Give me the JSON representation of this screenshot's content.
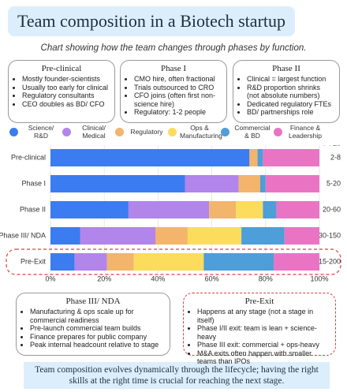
{
  "title": "Team composition in a Biotech startup",
  "subtitle": "Chart showing how the team changes through phases by function.",
  "top_boxes": [
    {
      "title": "Pre-clinical",
      "items": [
        "Mostly founder-scientists",
        "Usually too early for clinical",
        "Regulatory consultants",
        "CEO doubles as BD/ CFO"
      ]
    },
    {
      "title": "Phase I",
      "items": [
        "CMO hire, often fractional",
        "Trials outsourced to CRO",
        "CFO joins (often first non-science hire)",
        "Regulatory: 1-2 people"
      ]
    },
    {
      "title": "Phase II",
      "items": [
        "Clinical = largest function",
        "R&D proportion shrinks (not absolute numbers)",
        "Dedicated regulatory FTEs",
        "BD/ partnerships role"
      ]
    }
  ],
  "bottom_boxes": [
    {
      "title": "Phase III/ NDA",
      "items": [
        "Manufacturing & ops scale up for commercial readiness",
        "Pre-launch commercial team builds",
        "Finance prepares for public company",
        "Peak internal headcount relative to stage"
      ]
    },
    {
      "title": "Pre-Exit",
      "items": [
        "Happens at any stage (not a stage in itself)",
        "Phase I/II exit: team is lean + science-heavy",
        "Phase III exit: commercial + ops-heavy",
        "M&A exits often happen with smaller teams than IPOs"
      ]
    }
  ],
  "footer": "Team composition evolves dynamically through the lifecycle; having the right skills at the right time is crucial for reaching the next stage.",
  "chart_data": {
    "type": "stacked-bar-horizontal",
    "categories": [
      "Pre-clinical",
      "Phase I",
      "Phase II",
      "Phase III/ NDA",
      "Pre-Exit"
    ],
    "series": [
      {
        "name": "Science/ R&D",
        "color": "#3b7cf0",
        "values": [
          74,
          50,
          29,
          11,
          9
        ]
      },
      {
        "name": "Clinical/ Medical",
        "color": "#b185ea",
        "values": [
          0,
          20,
          30,
          28,
          12
        ]
      },
      {
        "name": "Regulatory",
        "color": "#f3b46c",
        "values": [
          3,
          8,
          10,
          12,
          10
        ]
      },
      {
        "name": "Ops & Manufacturing",
        "color": "#fcdc5c",
        "values": [
          0,
          0,
          10,
          20,
          26
        ]
      },
      {
        "name": "Commercial & BD",
        "color": "#4d9ed9",
        "values": [
          2,
          2,
          5,
          16,
          26
        ]
      },
      {
        "name": "Finance & Leadership",
        "color": "#ea74c4",
        "values": [
          21,
          20,
          16,
          13,
          17
        ]
      }
    ],
    "xlim": [
      0,
      100
    ],
    "xticks": [
      {
        "value": 0,
        "label": "0%"
      },
      {
        "value": 20,
        "label": "20%"
      },
      {
        "value": 40,
        "label": "40%"
      },
      {
        "value": 60,
        "label": "60%"
      },
      {
        "value": 80,
        "label": "80%"
      },
      {
        "value": 100,
        "label": "100%"
      }
    ],
    "grid": true,
    "fte_label": "FTEs",
    "fte": [
      "2-8",
      "5-20",
      "20-60",
      "30-150",
      "15-200"
    ]
  }
}
